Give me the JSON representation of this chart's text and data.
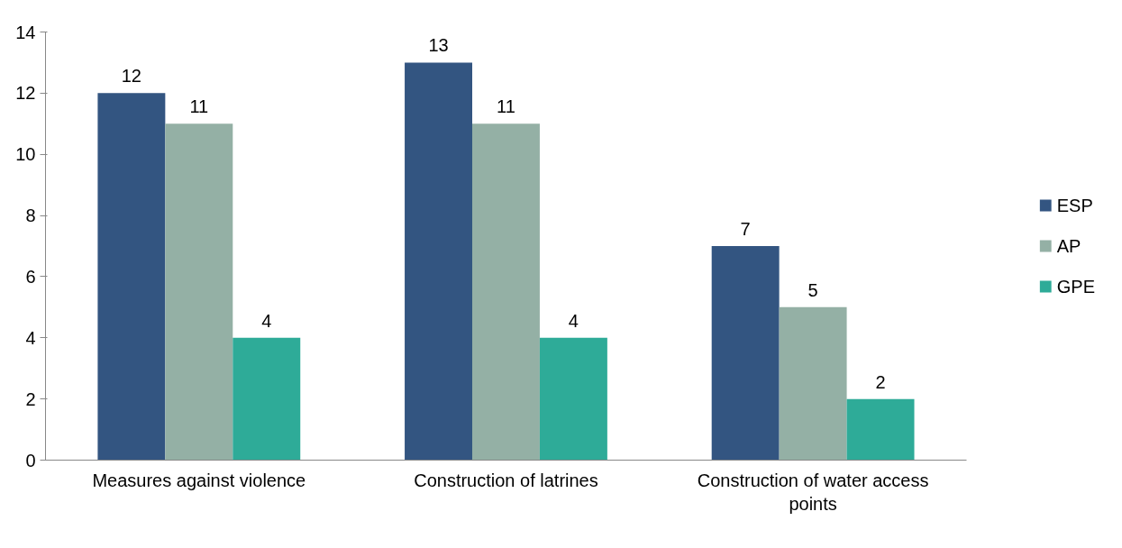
{
  "chart_data": {
    "type": "bar",
    "categories": [
      "Measures against violence",
      "Construction of latrines",
      "Construction of water access points"
    ],
    "series": [
      {
        "name": "ESP",
        "color": "#335581",
        "values": [
          12,
          13,
          7
        ]
      },
      {
        "name": "AP",
        "color": "#94b0a5",
        "values": [
          11,
          11,
          5
        ]
      },
      {
        "name": "GPE",
        "color": "#2eab98",
        "values": [
          4,
          4,
          2
        ]
      }
    ],
    "ylim": [
      0,
      14
    ],
    "yticks": [
      0,
      2,
      4,
      6,
      8,
      10,
      12,
      14
    ],
    "grid": false,
    "legend": "right",
    "data_labels": true
  }
}
